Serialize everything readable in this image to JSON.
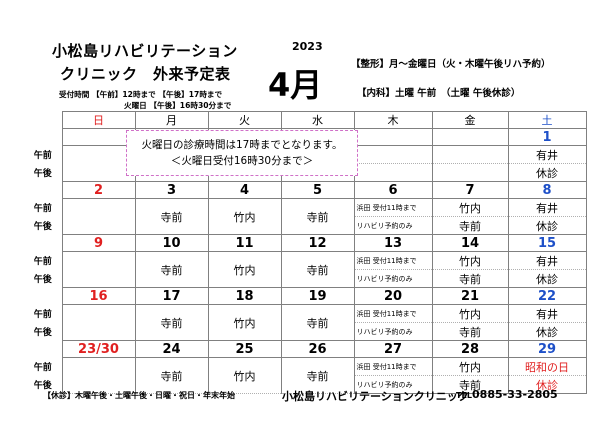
{
  "header": {
    "clinic_name": "小松島リハビリテーション",
    "subtitle": "クリニック　外来予定表",
    "year": "2023",
    "month": "4月",
    "orthopedics": "【整形】月～金曜日（火・木曜午後リハ予約）",
    "internal": "【内科】土曜 午前　（土曜 午後休診）",
    "hours_line1": "受付時間 【午前】12時まで 【午後】17時まで",
    "hours_line2": "火曜日 【午後】16時30分まで"
  },
  "calendar": {
    "weekdays": [
      "日",
      "月",
      "火",
      "水",
      "木",
      "金",
      "土"
    ],
    "am_label": "午前",
    "pm_label": "午後",
    "weeks": [
      {
        "dates": [
          "",
          "",
          "",
          "",
          "",
          "",
          "1"
        ],
        "sat_am": "有井",
        "sat_pm": "休診"
      },
      {
        "dates": [
          "2",
          "3",
          "4",
          "5",
          "6",
          "7",
          "8"
        ],
        "mon": "寺前",
        "tue": "竹内",
        "wed": "寺前",
        "thu_am": "浜田 受付11時まで",
        "thu_pm": "リハビリ予約のみ",
        "fri_am": "竹内",
        "fri_pm": "寺前",
        "sat_am": "有井",
        "sat_pm": "休診"
      },
      {
        "dates": [
          "9",
          "10",
          "11",
          "12",
          "13",
          "14",
          "15"
        ],
        "mon": "寺前",
        "tue": "竹内",
        "wed": "寺前",
        "thu_am": "浜田 受付11時まで",
        "thu_pm": "リハビリ予約のみ",
        "fri_am": "竹内",
        "fri_pm": "寺前",
        "sat_am": "有井",
        "sat_pm": "休診"
      },
      {
        "dates": [
          "16",
          "17",
          "18",
          "19",
          "20",
          "21",
          "22"
        ],
        "mon": "寺前",
        "tue": "竹内",
        "wed": "寺前",
        "thu_am": "浜田 受付11時まで",
        "thu_pm": "リハビリ予約のみ",
        "fri_am": "竹内",
        "fri_pm": "寺前",
        "sat_am": "有井",
        "sat_pm": "休診"
      },
      {
        "dates": [
          "23/30",
          "24",
          "25",
          "26",
          "27",
          "28",
          "29"
        ],
        "mon": "寺前",
        "tue": "竹内",
        "wed": "寺前",
        "thu_am": "浜田 受付11時まで",
        "thu_pm": "リハビリ予約のみ",
        "fri_am": "竹内",
        "fri_pm": "寺前",
        "sat_am": "昭和の日",
        "sat_pm": "休診"
      }
    ]
  },
  "notice": {
    "line1": "火曜日の診療時間は17時までとなります。",
    "line2": "＜火曜日受付16時30分まで＞"
  },
  "footer": {
    "closed_days": "【休診】木曜午後・土曜午後・日曜・祝日・年末年始",
    "clinic_name": "小松島リハビリテーションクリニック",
    "tel_mark": "TEL",
    "tel_number": "0885-33-2805"
  },
  "colors": {
    "sunday": "#e02020",
    "saturday": "#1e50c8",
    "holiday": "#e02020",
    "notice_border": "#d070c8"
  }
}
